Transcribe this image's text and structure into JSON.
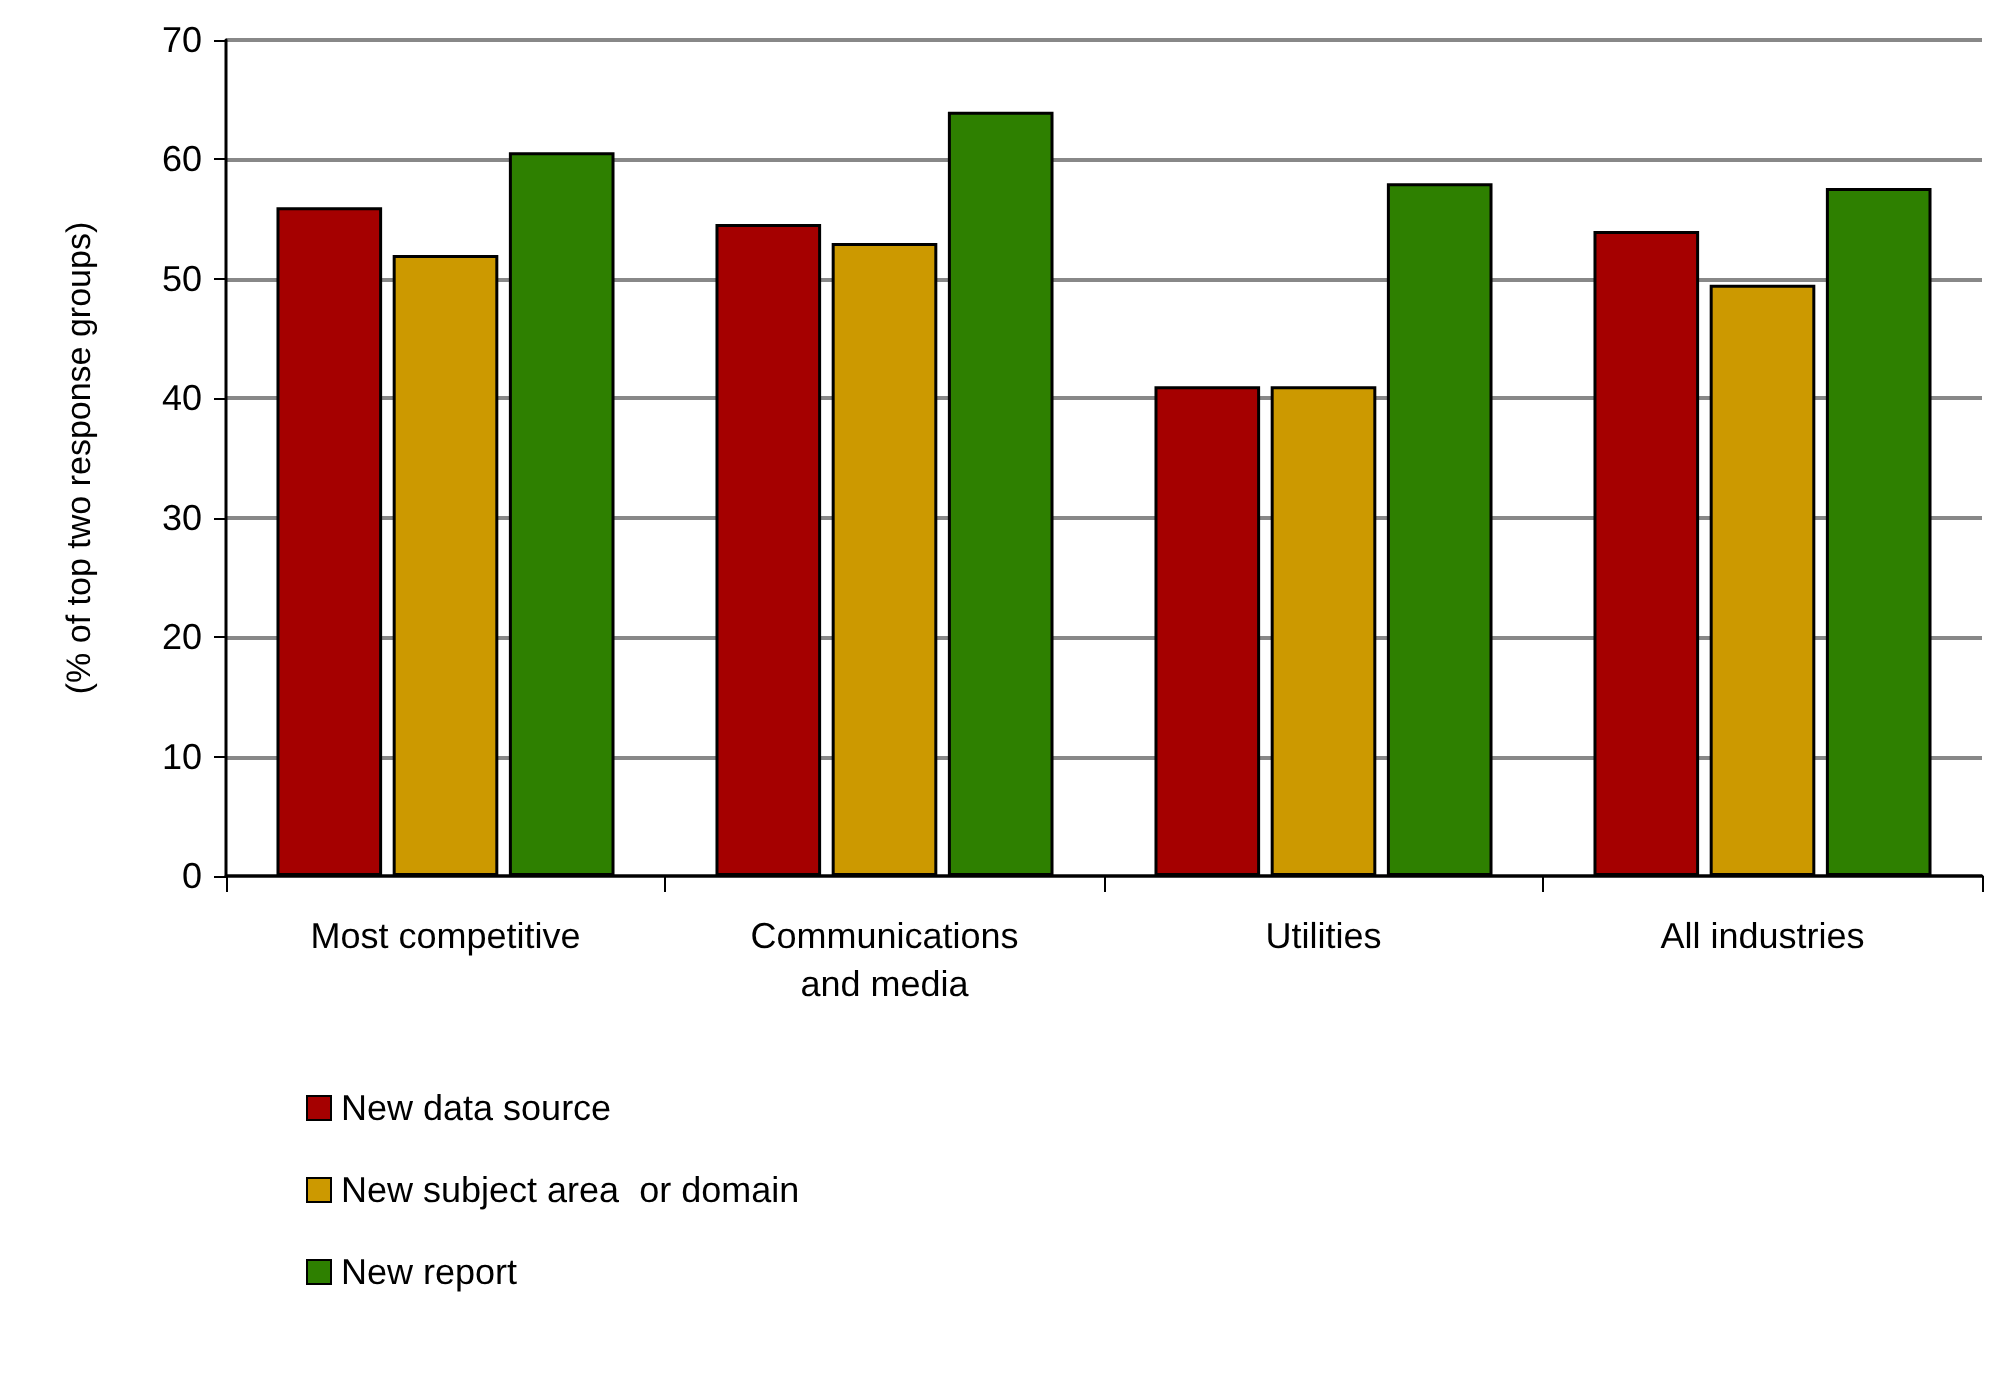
{
  "chart_data": {
    "type": "bar",
    "ylabel": "(% of top two response groups)",
    "categories": [
      "Most competitive",
      "Communications\nand media",
      "Utilities",
      "All industries"
    ],
    "series": [
      {
        "name": "New data source",
        "color": "#a50000",
        "values": [
          56,
          54.6,
          41,
          54
        ]
      },
      {
        "name": "New subject area  or domain",
        "color": "#cc9900",
        "values": [
          52,
          53,
          41,
          49.5
        ]
      },
      {
        "name": "New report",
        "color": "#2e8000",
        "values": [
          60.6,
          64,
          58,
          57.6
        ]
      }
    ],
    "ylim": [
      0,
      70
    ],
    "yticks": [
      0,
      10,
      20,
      30,
      40,
      50,
      60,
      70
    ],
    "grid": "y",
    "legend": "bottom left"
  }
}
